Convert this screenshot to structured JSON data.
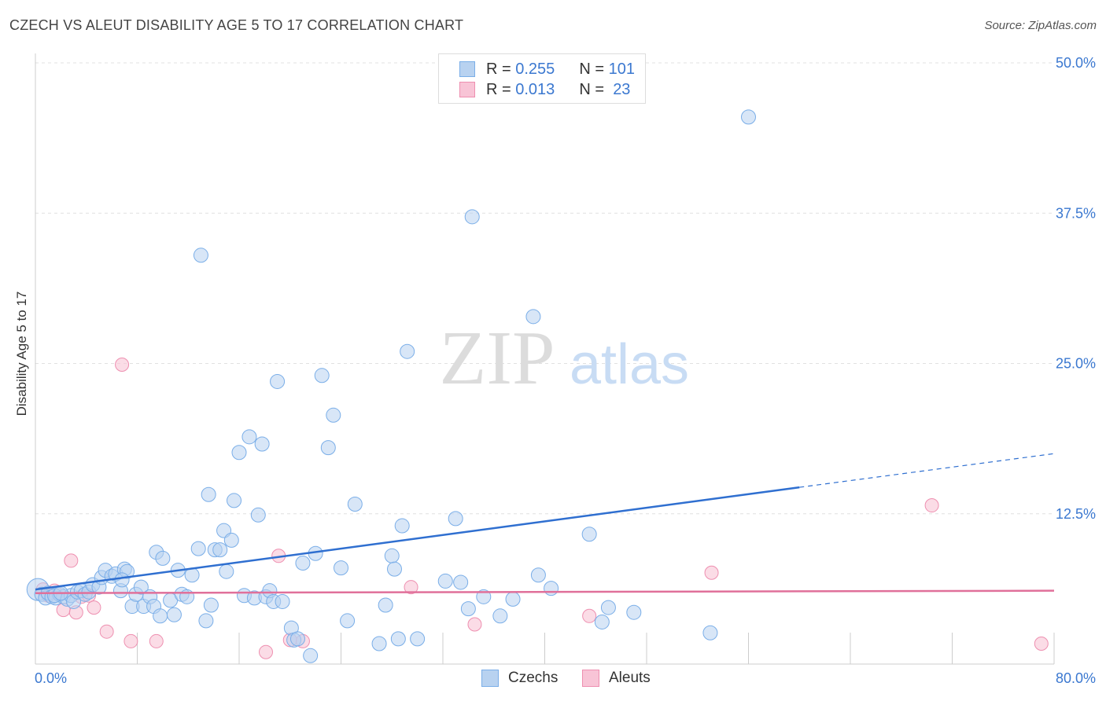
{
  "title": "CZECH VS ALEUT DISABILITY AGE 5 TO 17 CORRELATION CHART",
  "source": "Source: ZipAtlas.com",
  "watermark": {
    "zip": "ZIP",
    "atlas": "atlas"
  },
  "colors": {
    "blue_fill": "#b8d2f0",
    "blue_stroke": "#7aaee8",
    "blue_line": "#2f6fd0",
    "pink_fill": "#f8c4d6",
    "pink_stroke": "#ee8fb0",
    "pink_line": "#e0709a",
    "tick_label": "#3b78d0",
    "grid": "#e0e0e0"
  },
  "legend_top": [
    {
      "r_label": "R =",
      "r_value": "0.255",
      "n_label": "N =",
      "n_value": "101",
      "color": "blue"
    },
    {
      "r_label": "R =",
      "r_value": "0.013",
      "n_label": "N =",
      "n_value": "23",
      "color": "pink"
    }
  ],
  "legend_bottom": [
    {
      "label": "Czechs",
      "color": "blue"
    },
    {
      "label": "Aleuts",
      "color": "pink"
    }
  ],
  "chart_data": {
    "type": "scatter",
    "title": "CZECH VS ALEUT DISABILITY AGE 5 TO 17 CORRELATION CHART",
    "xlabel": "",
    "ylabel": "Disability Age 5 to 17",
    "xlim": [
      0,
      80
    ],
    "ylim": [
      0,
      50
    ],
    "x_tick_labels": [
      "0.0%",
      "80.0%"
    ],
    "y_ticks": [
      12.5,
      25.0,
      37.5,
      50.0
    ],
    "y_tick_labels": [
      "12.5%",
      "25.0%",
      "37.5%",
      "50.0%"
    ],
    "grid": true,
    "legend": "top-center",
    "series": [
      {
        "name": "Czechs",
        "r": 0.255,
        "n": 101,
        "trend": {
          "x0": 0,
          "y0": 6.2,
          "x1": 60,
          "y1": 14.7,
          "dashed_to_x": 80,
          "dashed_to_y": 17.5
        },
        "points": [
          [
            0.2,
            6.2
          ],
          [
            0.5,
            5.8
          ],
          [
            0.8,
            5.5
          ],
          [
            1.0,
            5.9
          ],
          [
            1.3,
            5.6
          ],
          [
            1.6,
            5.5
          ],
          [
            1.9,
            5.8
          ],
          [
            2.2,
            5.6
          ],
          [
            2.5,
            5.4
          ],
          [
            2.8,
            5.7
          ],
          [
            3.0,
            5.2
          ],
          [
            3.3,
            6.0
          ],
          [
            3.6,
            6.1
          ],
          [
            3.9,
            5.8
          ],
          [
            4.2,
            6.0
          ],
          [
            4.5,
            6.6
          ],
          [
            5.0,
            6.4
          ],
          [
            5.2,
            7.2
          ],
          [
            5.5,
            7.8
          ],
          [
            6.0,
            7.3
          ],
          [
            6.3,
            7.5
          ],
          [
            6.7,
            6.1
          ],
          [
            7.0,
            7.9
          ],
          [
            7.2,
            7.7
          ],
          [
            7.6,
            4.8
          ],
          [
            7.9,
            5.8
          ],
          [
            8.3,
            6.4
          ],
          [
            8.5,
            4.8
          ],
          [
            9.0,
            5.6
          ],
          [
            9.3,
            4.8
          ],
          [
            9.5,
            9.3
          ],
          [
            9.8,
            4.0
          ],
          [
            10.0,
            8.8
          ],
          [
            10.6,
            5.3
          ],
          [
            10.9,
            4.1
          ],
          [
            11.2,
            7.8
          ],
          [
            11.5,
            5.8
          ],
          [
            11.9,
            5.6
          ],
          [
            12.3,
            7.4
          ],
          [
            12.8,
            9.6
          ],
          [
            13.0,
            34.0
          ],
          [
            13.4,
            3.6
          ],
          [
            13.6,
            14.1
          ],
          [
            13.8,
            4.9
          ],
          [
            14.1,
            9.5
          ],
          [
            14.5,
            9.5
          ],
          [
            14.8,
            11.1
          ],
          [
            15.0,
            7.7
          ],
          [
            15.4,
            10.3
          ],
          [
            15.6,
            13.6
          ],
          [
            16.0,
            17.6
          ],
          [
            16.4,
            5.7
          ],
          [
            16.8,
            18.9
          ],
          [
            17.2,
            5.5
          ],
          [
            17.5,
            12.4
          ],
          [
            17.8,
            18.3
          ],
          [
            18.1,
            5.6
          ],
          [
            18.4,
            6.1
          ],
          [
            18.7,
            5.2
          ],
          [
            19.0,
            23.5
          ],
          [
            19.4,
            5.2
          ],
          [
            20.1,
            3.0
          ],
          [
            20.3,
            2.0
          ],
          [
            20.6,
            2.1
          ],
          [
            21.0,
            8.4
          ],
          [
            21.6,
            0.7
          ],
          [
            22.0,
            9.2
          ],
          [
            22.5,
            24.0
          ],
          [
            23.0,
            18.0
          ],
          [
            23.4,
            20.7
          ],
          [
            24.0,
            8.0
          ],
          [
            24.5,
            3.6
          ],
          [
            25.1,
            13.3
          ],
          [
            27.0,
            1.7
          ],
          [
            27.5,
            4.9
          ],
          [
            28.0,
            9.0
          ],
          [
            28.2,
            7.9
          ],
          [
            28.5,
            2.1
          ],
          [
            28.8,
            11.5
          ],
          [
            29.2,
            26.0
          ],
          [
            30.0,
            2.1
          ],
          [
            32.2,
            6.9
          ],
          [
            33.0,
            12.1
          ],
          [
            33.4,
            6.8
          ],
          [
            34.0,
            4.6
          ],
          [
            34.3,
            37.2
          ],
          [
            35.2,
            5.6
          ],
          [
            36.5,
            4.0
          ],
          [
            37.5,
            5.4
          ],
          [
            39.1,
            28.9
          ],
          [
            39.5,
            7.4
          ],
          [
            40.5,
            6.3
          ],
          [
            43.5,
            10.8
          ],
          [
            44.5,
            3.5
          ],
          [
            45.0,
            4.7
          ],
          [
            47.0,
            4.3
          ],
          [
            53.0,
            2.6
          ],
          [
            56.0,
            45.5
          ],
          [
            1.5,
            5.7
          ],
          [
            2.0,
            5.9
          ],
          [
            6.8,
            7.0
          ]
        ]
      },
      {
        "name": "Aleuts",
        "r": 0.013,
        "n": 23,
        "trend": {
          "x0": 0,
          "y0": 5.9,
          "x1": 80,
          "y1": 6.1
        },
        "points": [
          [
            0.6,
            6.2
          ],
          [
            1.0,
            5.7
          ],
          [
            1.5,
            6.1
          ],
          [
            2.2,
            4.5
          ],
          [
            2.8,
            8.6
          ],
          [
            3.2,
            4.3
          ],
          [
            3.6,
            5.6
          ],
          [
            4.2,
            5.7
          ],
          [
            4.6,
            4.7
          ],
          [
            5.6,
            2.7
          ],
          [
            6.8,
            24.9
          ],
          [
            7.5,
            1.9
          ],
          [
            9.5,
            1.9
          ],
          [
            18.1,
            1.0
          ],
          [
            19.1,
            9.0
          ],
          [
            20.0,
            2.0
          ],
          [
            21.0,
            1.9
          ],
          [
            29.5,
            6.4
          ],
          [
            34.5,
            3.3
          ],
          [
            43.5,
            4.0
          ],
          [
            53.1,
            7.6
          ],
          [
            70.4,
            13.2
          ],
          [
            79.0,
            1.7
          ]
        ]
      }
    ]
  }
}
